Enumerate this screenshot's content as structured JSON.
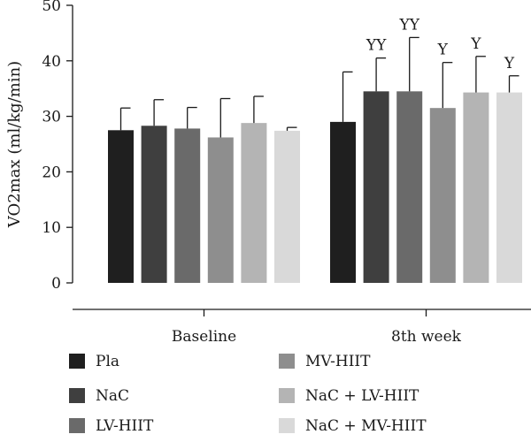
{
  "chart_data": {
    "type": "bar",
    "title": "",
    "xlabel": "",
    "ylabel": "VO2max (ml/kg/min)",
    "ylim": [
      0,
      50
    ],
    "yticks": [
      0,
      10,
      20,
      30,
      40,
      50
    ],
    "grid": false,
    "legend_position": "bottom",
    "error_bars": "positive-only",
    "categories": [
      "Baseline",
      "8th week"
    ],
    "series": [
      {
        "name": "Pla",
        "color": "#1f1f1f",
        "values": [
          27.5,
          29.0
        ],
        "errors": [
          4.0,
          9.0
        ],
        "annotations": [
          "",
          ""
        ]
      },
      {
        "name": "NaC",
        "color": "#3f3f3f",
        "values": [
          28.3,
          34.5
        ],
        "errors": [
          4.7,
          6.0
        ],
        "annotations": [
          "",
          "YY"
        ]
      },
      {
        "name": "LV-HIIT",
        "color": "#6a6a6a",
        "values": [
          27.8,
          34.5
        ],
        "errors": [
          3.8,
          9.7
        ],
        "annotations": [
          "",
          "YY"
        ]
      },
      {
        "name": "MV-HIIT",
        "color": "#8e8e8e",
        "values": [
          26.2,
          31.5
        ],
        "errors": [
          7.0,
          8.2
        ],
        "annotations": [
          "",
          "Y"
        ]
      },
      {
        "name": "NaC + LV-HIIT",
        "color": "#b4b4b4",
        "values": [
          28.8,
          34.3
        ],
        "errors": [
          4.8,
          6.5
        ],
        "annotations": [
          "",
          "Y"
        ]
      },
      {
        "name": "NaC + MV-HIIT",
        "color": "#d9d9d9",
        "values": [
          27.4,
          34.3
        ],
        "errors": [
          0.6,
          3.0
        ],
        "annotations": [
          "",
          "Y"
        ]
      }
    ]
  }
}
